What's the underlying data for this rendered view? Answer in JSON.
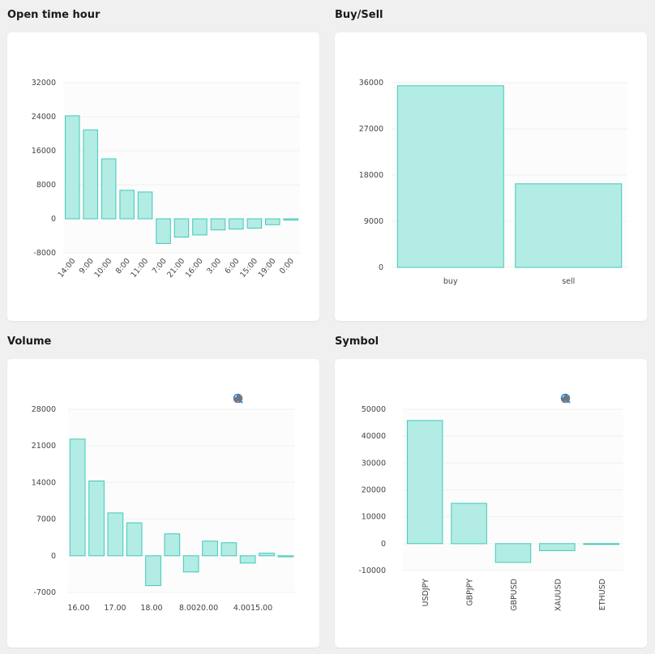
{
  "panels": {
    "open_time_hour": {
      "title": "Open time hour"
    },
    "buy_sell": {
      "title": "Buy/Sell"
    },
    "volume": {
      "title": "Volume"
    },
    "symbol": {
      "title": "Symbol"
    }
  },
  "toolbar_icons": [
    "zoom-in-icon",
    "zoom-out-icon",
    "zoom-select-icon",
    "pan-hand-icon",
    "home-icon"
  ],
  "colors": {
    "bar_fill": "#b3ece4",
    "bar_stroke": "#3fcab8",
    "active_tool": "#1e88e5",
    "tool": "#6e7681"
  },
  "chart_data": [
    {
      "id": "open_time_hour",
      "type": "bar",
      "categories": [
        "14:00",
        "9:00",
        "10:00",
        "8:00",
        "11:00",
        "7:00",
        "21:00",
        "16:00",
        "3:00",
        "6:00",
        "15:00",
        "19:00",
        "0:00"
      ],
      "values": [
        24200,
        20900,
        14100,
        6700,
        6300,
        -5800,
        -4300,
        -3800,
        -2600,
        -2400,
        -2200,
        -1400,
        -300
      ],
      "yticks": [
        "32000",
        "24000",
        "16000",
        "8000",
        "0",
        "-8000"
      ],
      "ylim": [
        -8000,
        32000
      ],
      "grid": true,
      "title": "",
      "xlabel": "",
      "ylabel": ""
    },
    {
      "id": "buy_sell",
      "type": "bar",
      "categories": [
        "buy",
        "sell"
      ],
      "values": [
        35400,
        16300
      ],
      "yticks": [
        "36000",
        "27000",
        "18000",
        "9000",
        "0"
      ],
      "ylim": [
        0,
        36000
      ],
      "grid": true,
      "title": "",
      "xlabel": "",
      "ylabel": ""
    },
    {
      "id": "volume",
      "type": "bar",
      "x_tick_labels": [
        "16.00",
        "17.00",
        "18.00",
        "8.0020.00",
        "4.0015.00"
      ],
      "values": [
        22300,
        14300,
        8200,
        6300,
        -5700,
        4200,
        -3100,
        2800,
        2500,
        -1400,
        500,
        -200
      ],
      "yticks": [
        "28000",
        "21000",
        "14000",
        "7000",
        "0",
        "-7000"
      ],
      "ylim": [
        -7000,
        28000
      ],
      "grid": true,
      "title": "",
      "xlabel": "",
      "ylabel": ""
    },
    {
      "id": "symbol",
      "type": "bar",
      "categories": [
        "USDJPY",
        "GBPJPY",
        "GBPUSD",
        "XAUUSD",
        "ETHUSD"
      ],
      "values": [
        45800,
        15000,
        -7000,
        -2600,
        -300
      ],
      "yticks": [
        "50000",
        "40000",
        "30000",
        "20000",
        "10000",
        "0",
        "-10000"
      ],
      "ylim": [
        -10000,
        50000
      ],
      "grid": true,
      "title": "",
      "xlabel": "",
      "ylabel": ""
    }
  ]
}
